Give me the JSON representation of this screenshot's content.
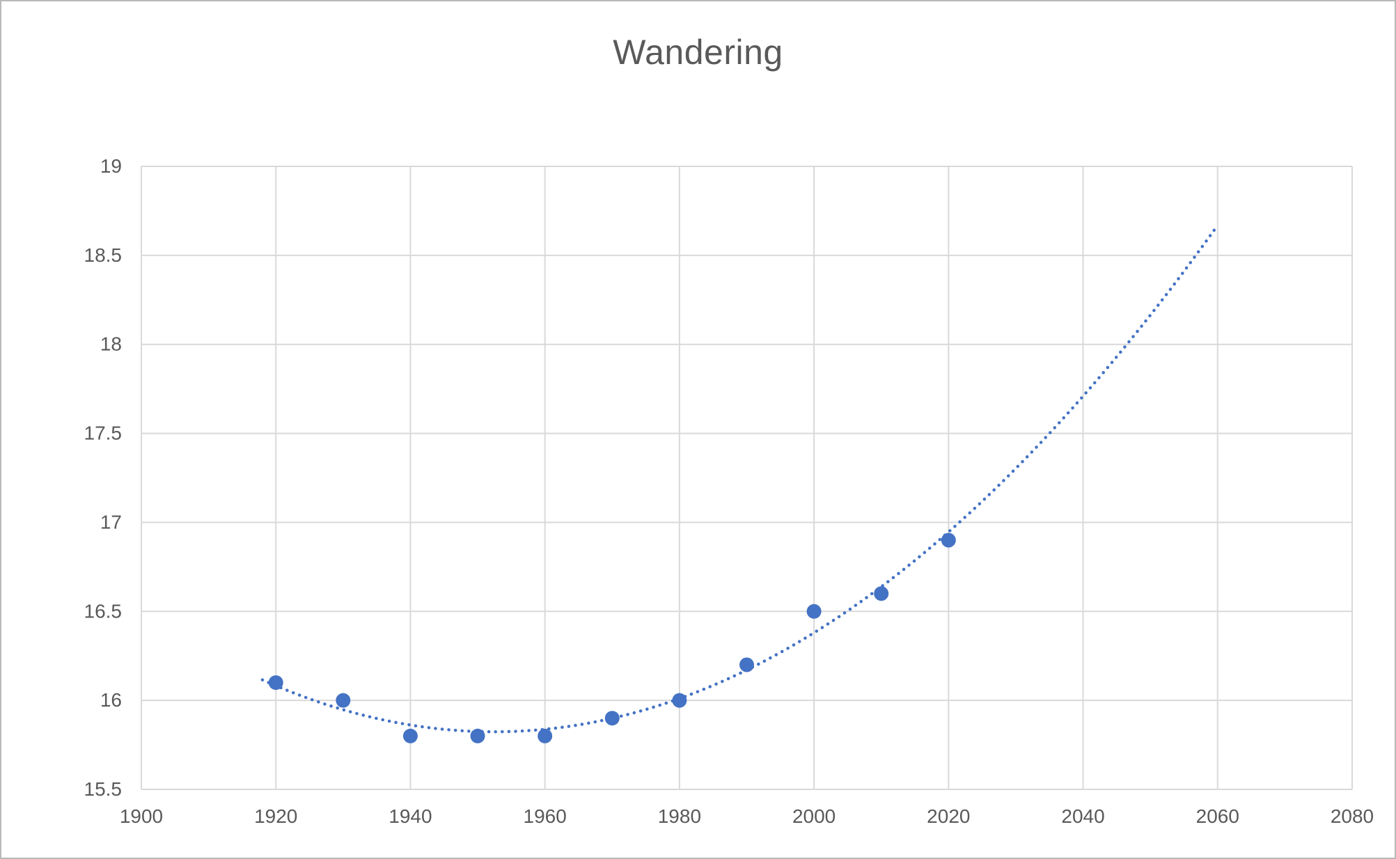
{
  "chart_data": {
    "type": "scatter",
    "title": "Wandering",
    "x": [
      1920,
      1930,
      1940,
      1950,
      1960,
      1970,
      1980,
      1990,
      2000,
      2010,
      2020
    ],
    "y": [
      16.1,
      16.0,
      15.8,
      15.8,
      15.8,
      15.9,
      16.0,
      16.2,
      16.5,
      16.6,
      16.9
    ],
    "xlabel": "",
    "ylabel": "",
    "xlim": [
      1900,
      2080
    ],
    "ylim": [
      15.5,
      19
    ],
    "x_ticks": [
      1900,
      1920,
      1940,
      1960,
      1980,
      2000,
      2020,
      2040,
      2060,
      2080
    ],
    "y_ticks": [
      15.5,
      16,
      16.5,
      17,
      17.5,
      18,
      18.5,
      19
    ],
    "grid": true,
    "legend": false,
    "series_name": "Wandering",
    "trendline": {
      "type": "polynomial",
      "order": 2,
      "u_center": 1970,
      "u_scale": 10,
      "a": 15.8995,
      "b": 0.086364,
      "c": 0.024593,
      "x_start": 1918,
      "x_end": 2060
    },
    "colors": {
      "series": "#4472C4",
      "grid": "#d9d9d9",
      "text": "#595959"
    }
  }
}
